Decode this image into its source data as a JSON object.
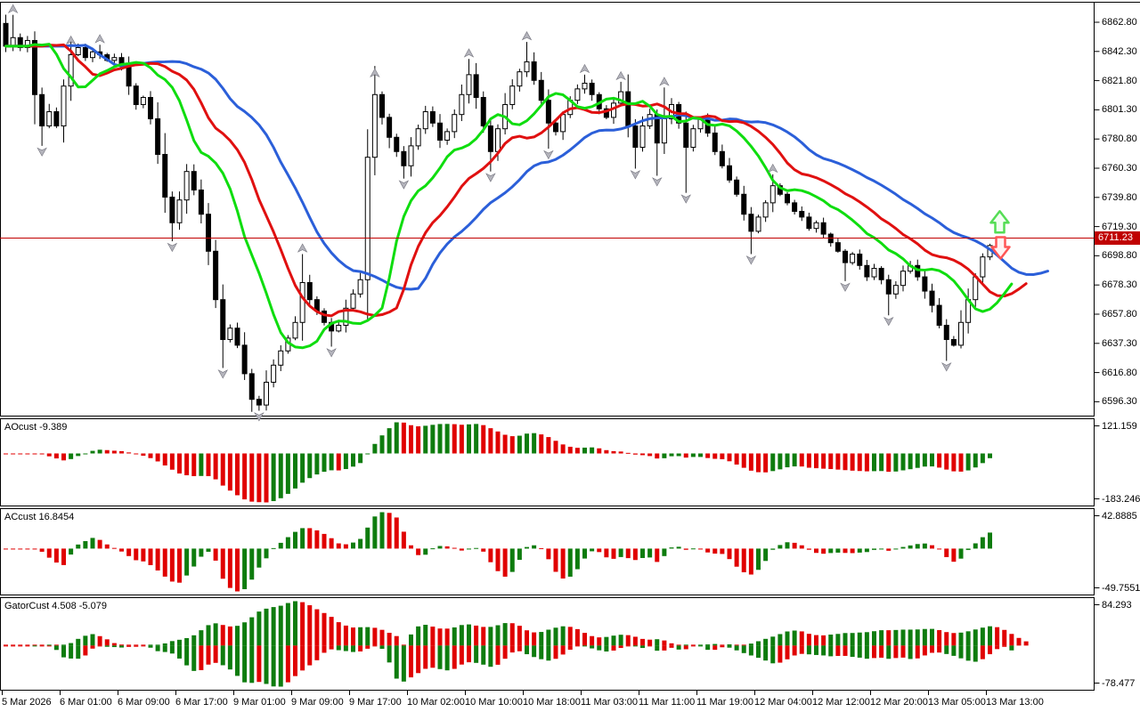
{
  "chart_data": {
    "type": "candlestick",
    "style": "metatrader-terminal",
    "price_axis": {
      "ticks": [
        "6862.80",
        "6842.30",
        "6821.80",
        "6801.30",
        "6780.80",
        "6760.30",
        "6739.80",
        "6719.30",
        "6698.80",
        "6678.30",
        "6657.80",
        "6637.30",
        "6616.80",
        "6596.30"
      ],
      "tick_step": 20.5,
      "top_tick_value": 6862.8,
      "current_price": "6711.23",
      "current_price_value": 6711.23
    },
    "time_axis": {
      "labels": [
        "5 Mar 2026",
        "6 Mar 01:00",
        "6 Mar 09:00",
        "6 Mar 17:00",
        "9 Mar 01:00",
        "9 Mar 09:00",
        "9 Mar 17:00",
        "10 Mar 02:00",
        "10 Mar 10:00",
        "10 Mar 18:00",
        "11 Mar 03:00",
        "11 Mar 11:00",
        "11 Mar 19:00",
        "12 Mar 04:00",
        "12 Mar 12:00",
        "12 Mar 20:00",
        "13 Mar 05:00",
        "13 Mar 13:00"
      ],
      "bars_per_label": 8
    },
    "series": {
      "open_first": 6862,
      "closes": [
        6846,
        6852,
        6845,
        6850,
        6812,
        6790,
        6800,
        6790,
        6818,
        6840,
        6845,
        6838,
        6842,
        6840,
        6836,
        6838,
        6832,
        6818,
        6805,
        6810,
        6795,
        6770,
        6740,
        6722,
        6738,
        6758,
        6745,
        6728,
        6702,
        6668,
        6640,
        6648,
        6636,
        6616,
        6598,
        6594,
        6610,
        6622,
        6632,
        6641,
        6652,
        6680,
        6668,
        6660,
        6652,
        6646,
        6650,
        6662,
        6672,
        6682,
        6768,
        6812,
        6796,
        6782,
        6772,
        6762,
        6776,
        6788,
        6800,
        6792,
        6780,
        6786,
        6798,
        6812,
        6826,
        6810,
        6790,
        6772,
        6788,
        6805,
        6818,
        6828,
        6835,
        6822,
        6808,
        6792,
        6786,
        6798,
        6808,
        6816,
        6820,
        6812,
        6802,
        6796,
        6806,
        6814,
        6790,
        6775,
        6790,
        6798,
        6778,
        6795,
        6805,
        6792,
        6775,
        6788,
        6795,
        6785,
        6772,
        6762,
        6752,
        6742,
        6728,
        6716,
        6726,
        6736,
        6748,
        6742,
        6736,
        6730,
        6726,
        6718,
        6722,
        6714,
        6708,
        6702,
        6694,
        6700,
        6692,
        6684,
        6690,
        6682,
        6672,
        6678,
        6688,
        6692,
        6684,
        6674,
        6664,
        6650,
        6640,
        6636,
        6652,
        6668,
        6684,
        6698,
        6706
      ],
      "bull_color": "#ffffff",
      "bear_color": "#000000"
    },
    "overlays": {
      "alligator": {
        "jaw": {
          "period": 13,
          "shift": 8,
          "color": "#2b5fd9"
        },
        "teeth": {
          "period": 8,
          "shift": 5,
          "color": "#e01010"
        },
        "lips": {
          "period": 5,
          "shift": 3,
          "color": "#0fdd0f"
        }
      },
      "horizontal_line": {
        "price": 6711.23,
        "color": "#c00000"
      },
      "fractals_up": [
        [
          1,
          6872
        ],
        [
          9,
          6850
        ],
        [
          13,
          6851
        ],
        [
          41,
          6704
        ],
        [
          51,
          6827
        ],
        [
          64,
          6841
        ],
        [
          72,
          6853
        ],
        [
          80,
          6830
        ],
        [
          85,
          6825
        ],
        [
          91,
          6821
        ],
        [
          106,
          6760
        ]
      ],
      "fractals_down": [
        [
          5,
          6772
        ],
        [
          23,
          6705
        ],
        [
          30,
          6616
        ],
        [
          35,
          6586
        ],
        [
          45,
          6631
        ],
        [
          55,
          6749
        ],
        [
          67,
          6754
        ],
        [
          75,
          6770
        ],
        [
          87,
          6756
        ],
        [
          90,
          6751
        ],
        [
          94,
          6739
        ],
        [
          103,
          6696
        ],
        [
          116,
          6677
        ],
        [
          122,
          6653
        ],
        [
          130,
          6621
        ]
      ],
      "signal_arrows": {
        "up": {
          "price": 6722,
          "stroke": "#55dd55",
          "fill": "#f2fff2"
        },
        "down": {
          "price": 6705,
          "stroke": "#ff5555",
          "fill": "#fff2f2"
        }
      },
      "fractal_color": "#b4b4bc"
    },
    "indicator_panels": [
      {
        "name": "AOcust",
        "label": "AOcust -9.389",
        "max_label": "121.159",
        "min_label": "-183.246",
        "max": 121.159,
        "min": -183.246,
        "type": "histogram",
        "up_color": "#0e7c0e",
        "down_color": "#e00000"
      },
      {
        "name": "ACcust",
        "label": "ACcust 16.8454",
        "max_label": "42.8885",
        "min_label": "-49.7551",
        "max": 42.8885,
        "min": -49.7551,
        "type": "histogram",
        "up_color": "#0e7c0e",
        "down_color": "#e00000"
      },
      {
        "name": "GatorCust",
        "label": "GatorCust 4.508 -5.079",
        "max_label": "84.293",
        "min_label": "-78.477",
        "max": 84.293,
        "min": -78.477,
        "type": "histogram-gator",
        "up_color": "#0e7c0e",
        "down_color": "#e00000"
      }
    ]
  }
}
